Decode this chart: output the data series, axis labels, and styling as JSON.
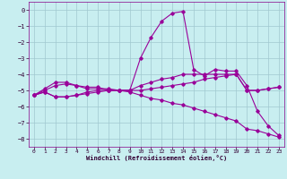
{
  "xlabel": "Windchill (Refroidissement éolien,°C)",
  "bg_color": "#c8eef0",
  "grid_color": "#a0c8d0",
  "line_color": "#990099",
  "xlim": [
    -0.5,
    23.5
  ],
  "ylim": [
    -8.5,
    0.5
  ],
  "xticks": [
    0,
    1,
    2,
    3,
    4,
    5,
    6,
    7,
    8,
    9,
    10,
    11,
    12,
    13,
    14,
    15,
    16,
    17,
    18,
    19,
    20,
    21,
    22,
    23
  ],
  "yticks": [
    0,
    -1,
    -2,
    -3,
    -4,
    -5,
    -6,
    -7,
    -8
  ],
  "line1_x": [
    0,
    1,
    2,
    3,
    4,
    5,
    6,
    7,
    8,
    9,
    10,
    11,
    12,
    13,
    14,
    15,
    16,
    17,
    18,
    19,
    20,
    21,
    22,
    23
  ],
  "line1_y": [
    -5.3,
    -4.9,
    -4.5,
    -4.5,
    -4.7,
    -4.9,
    -4.9,
    -4.9,
    -5.0,
    -5.0,
    -3.0,
    -1.7,
    -0.7,
    -0.2,
    -0.1,
    -3.7,
    -4.1,
    -3.7,
    -3.8,
    -3.8,
    -4.7,
    -6.3,
    -7.2,
    -7.8
  ],
  "line2_x": [
    0,
    1,
    2,
    3,
    4,
    5,
    6,
    7,
    8,
    9,
    10,
    11,
    12,
    13,
    14,
    15,
    16,
    17,
    18,
    19,
    20,
    21,
    22,
    23
  ],
  "line2_y": [
    -5.3,
    -5.0,
    -4.7,
    -4.6,
    -4.7,
    -4.8,
    -4.8,
    -5.0,
    -5.0,
    -5.0,
    -4.7,
    -4.5,
    -4.3,
    -4.2,
    -4.0,
    -4.0,
    -4.0,
    -4.0,
    -4.0,
    -4.0,
    -5.0,
    -5.0,
    -4.9,
    -4.8
  ],
  "line3_x": [
    0,
    1,
    2,
    3,
    4,
    5,
    6,
    7,
    8,
    9,
    10,
    11,
    12,
    13,
    14,
    15,
    16,
    17,
    18,
    19,
    20,
    21,
    22,
    23
  ],
  "line3_y": [
    -5.3,
    -5.1,
    -5.4,
    -5.4,
    -5.3,
    -5.1,
    -5.0,
    -5.0,
    -5.0,
    -5.0,
    -5.0,
    -4.9,
    -4.8,
    -4.7,
    -4.6,
    -4.5,
    -4.3,
    -4.2,
    -4.1,
    -4.0,
    -5.0,
    -5.0,
    -4.9,
    -4.8
  ],
  "line4_x": [
    0,
    1,
    2,
    3,
    4,
    5,
    6,
    7,
    8,
    9,
    10,
    11,
    12,
    13,
    14,
    15,
    16,
    17,
    18,
    19,
    20,
    21,
    22,
    23
  ],
  "line4_y": [
    -5.3,
    -5.1,
    -5.4,
    -5.4,
    -5.3,
    -5.2,
    -5.1,
    -5.0,
    -5.0,
    -5.1,
    -5.3,
    -5.5,
    -5.6,
    -5.8,
    -5.9,
    -6.1,
    -6.3,
    -6.5,
    -6.7,
    -6.9,
    -7.4,
    -7.5,
    -7.7,
    -7.9
  ]
}
